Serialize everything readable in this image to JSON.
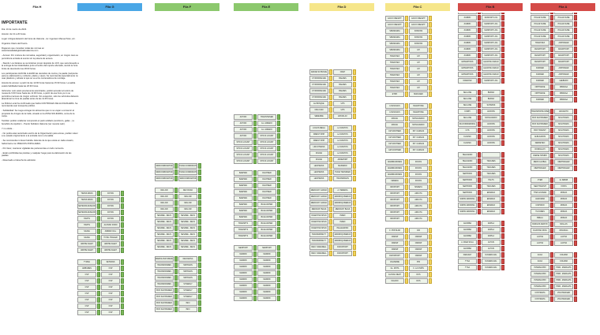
{
  "columns": [
    {
      "label": "Fila H",
      "color": "#ffffff",
      "text_color": "#222222"
    },
    {
      "label": "Fila G",
      "color": "#4aa7e6",
      "text_color": "#222222"
    },
    {
      "label": "Fila F",
      "color": "#8cc86d",
      "text_color": "#222222"
    },
    {
      "label": "Fila E",
      "color": "#8cc86d",
      "text_color": "#222222"
    },
    {
      "label": "Fila D",
      "color": "#f6e68a",
      "text_color": "#222222"
    },
    {
      "label": "Fila C",
      "color": "#f6e68a",
      "text_color": "#222222"
    },
    {
      "label": "Fila B",
      "color": "#d44b48",
      "text_color": "#222222"
    },
    {
      "label": "Fila A",
      "color": "#d44b48",
      "text_color": "#222222"
    }
  ],
  "notes": {
    "title": "IMPORTANTE",
    "paragraphs": [
      "Día: 10 de marzo de 2023.",
      "Horario: de 13 a 20 horas.",
      "Lugar: Antigua Estación del Grao de Valencia - Av. Ingeniero Manuel Soto, s/n.",
      "Organiza: Diario del Puerto.",
      "Rogamos que consulten todas las normas en www.fiestadelalogisticadevalencia.com",
      "- Acceso: Por motivos de normativa, seguridad y organización, en ningún caso se permitirá la entrada al evento sin la pulsera de acceso.",
      "- Stands: Los titulares se suministran previo depósito de 10 €, que será devuelto a la entrega de las titularidades junto al recibo del importe abonado, siendo la hora límite de devolución las 18:00 horas.",
      "Los participantes HAN DE LLEVAR las utensilios de cocina y la paella (recipiente para su elaboración) y cubierto, platos y vasos. Se recomienda especialmente no usar plásticos y alinear el qué se va a los contenedores de reciclaje.",
      "Horario de acceso: a partir de las 12:00 horas hasta las 15:30 horas. La salida estará habilitada hasta las 20:30 horas.",
      "Vehículos: solo están previamente autorizados, podrán acceder al recinto de mesas de 9:30 horas hasta las 11:30 horas, a partir de esa hora ya no se permitirá el acceso de ningún vehículo. Sin excepción, solo los vehículos deberán abandonar la zona de paellas antes de las 11:45 horas.",
      "La Policía Local ha confirmado que habrá CONTROLES DE ALCOHOLEMIA. Se recomienda usar transporte público.",
      "- Solidaridad: Se ruega entregar los alimentos que no se vayan a consumir al propósito de Amigos de la Calle, situado en la ZONA SOLIDARIA, cerca de la carpa.",
      "También podrán colaborar comprando el pack solidario (sombrero, gafas...) a beneficio de Apsiform - Puerto Solidario Valencia (ver nuestra web).",
      "Y no olvide...",
      "- No podrá estar autorizado escrito de la Organización para armas, podrán volver a su estado original tanto a la entrada como a la salida.",
      "- Se recomienda no llevar bebida. Además de la que exista en cada ocasión, habrá barra con PRECIOS POPULARES.",
      "- Por favor, mantener vigiladas las pertenencias en todo momento.",
      "- Están prohibidas las pistolas y cualquier fuego para la elaboración de las paellas.",
      "- Reservado el derecho de admisión."
    ]
  },
  "blocks": [
    {
      "col": 1,
      "rows": [
        [
          "TRANS MANS",
          "DOYPA"
        ],
        [
          "TRANS MANS",
          "DOYPA"
        ],
        [
          "SETRANS ESSILOR",
          "DOYPA"
        ],
        [
          "SETRANS ESSILOR",
          "DOYPA"
        ],
        [
          "HAVHS",
          "DOYPA"
        ],
        [
          "HAVHS",
          "ALONSO FORN"
        ],
        [
          "SAAVE",
          "AMBAR FULL"
        ],
        [
          "SAAVE",
          "TOTAL TRAILER"
        ],
        [
          "ARDHE FLEET",
          "ARDHE FLEET"
        ],
        [
          "ARDHE FLEET",
          "ARDHE FLEET"
        ],
        [],
        [
          "TYMSA",
          "SETRANS"
        ],
        [
          "AMBUMEN",
          "CSP"
        ],
        [
          "CSP",
          "CSP"
        ],
        [
          "CSP",
          "CSP"
        ],
        [
          "CSP",
          "CSP"
        ],
        [
          "CSP",
          "CSP"
        ],
        [
          "CSP",
          "CSP"
        ],
        [
          "CSP",
          "CSP"
        ],
        [
          "CSP",
          "CSP"
        ]
      ],
      "start": 242
    },
    {
      "col": 2,
      "rows": [
        [
          "SIMCOORDINATOR",
          "TURIA COORDINATOR"
        ],
        [
          "SIMCOORDINATOR",
          "TURIA COORDINATOR"
        ],
        [
          "SIMCOORDINATOR",
          "SIMCOORDINATOR"
        ],
        [],
        [
          "DEV AIR",
          "DEV ROAD"
        ],
        [
          "DEV AIR",
          "DEV AIR"
        ],
        [
          "DEV AIR",
          "DEV AIR"
        ],
        [
          "DEV AIR",
          "DEV AIR"
        ],
        [
          "SESAME - ZEUS",
          "SESAME - ZEUS"
        ],
        [
          "SESAME - ZEUS",
          "SESAME - ZEUS"
        ],
        [
          "SESAME - ZEUS",
          "SESAME - ZEUS"
        ],
        [
          "SESAME - ZEUS",
          "SESAME - ZEUS"
        ],
        [
          "SESAME - ZEUS",
          "SESAME - ZEUS"
        ],
        [
          "SESAME - ZEUS",
          "SESAME - ZEUS"
        ],
        [],
        [
          "MARKS AND SPENCER",
          "DECOEXSA"
        ],
        [
          "TRANSFORMES",
          "SINTRANS"
        ],
        [
          "TRANSFORMES",
          "SINTRANS"
        ],
        [
          "TRANSFORMES",
          "SINTRANS"
        ],
        [
          "TRANSFORMES",
          "SYNERGY"
        ],
        [
          "BOX SANTANDER",
          "SYNERGY"
        ],
        [
          "BOX SANTANDER",
          "SYNERGY"
        ],
        [
          "BOX SANTANDER",
          "IMCI"
        ],
        [
          "BOX SANTANDER",
          "IMCI"
        ]
      ],
      "start": 207
    },
    {
      "col": 3,
      "rows": [
        [
          "AKTION",
          "TRANSTAINER"
        ],
        [
          "AKTION",
          "GL. ANDEKO"
        ],
        [
          "AKTION",
          "GL. ANDEKO"
        ],
        [
          "AKTION",
          "STOCK LOGIST"
        ],
        [
          "STOCK LOGIST",
          "STOCK LOGIST"
        ],
        [
          "STOCK LOGIST",
          "STOCK LOGIST"
        ],
        [
          "STOCK LOGIST",
          "STOCK LOGIST"
        ],
        [
          "STOCK LOGIST",
          "STOCK LOGIST"
        ],
        [],
        [
          "BAEHIES",
          "DACHSER"
        ],
        [
          "BAEHIES",
          "DACHSER"
        ],
        [
          "BAEHIES",
          "DACHSER"
        ],
        [
          "BAEHIES",
          "DACHSER"
        ],
        [
          "BAEHIES",
          "DACHSER"
        ],
        [
          "BAEHIES",
          "BLUE WATER"
        ],
        [
          "BAEHIES",
          "BLUE WATER"
        ],
        [
          "BAEHIES",
          "BLUE WATER"
        ],
        [
          "TRANSPTS",
          "BLUE WATER"
        ],
        [
          "TRANSPTS",
          "BLUE WATER"
        ],
        [
          "TRANSPTS",
          "BLUE WATER"
        ],
        [],
        [
          "NEWPORT",
          "NEWPORT"
        ],
        [
          "MADRID",
          "MADRID"
        ],
        [
          "MADRID",
          "MADRID"
        ],
        [
          "MADRID",
          "MADRID"
        ],
        [
          "MADRID",
          "MADRID"
        ],
        [
          "MADRID",
          "MADRID"
        ],
        [
          "MADRID",
          "MADRID"
        ],
        [
          "MADRID",
          "MADRID"
        ],
        [
          "MADRID",
          "MADRID"
        ]
      ],
      "start": 145
    },
    {
      "col": 4,
      "rows": [
        [
          "RADAR SCHUNCE",
          "ONET"
        ],
        [
          "CH RODRIGUES",
          "BALMES"
        ],
        [
          "CH RODRIGUES",
          "BALMES"
        ],
        [
          "CH RODRIGUES",
          "BALMES"
        ],
        [
          "CH RODRIGUES",
          "BALMES"
        ],
        [
          "EL BOSQUE",
          "UPS"
        ],
        [
          "CMA CGM",
          "UPS"
        ],
        [
          "SEMENDE",
          "ESTAFLAX"
        ],
        [],
        [
          "LOGOS MEGA",
          "LA FIANTOS"
        ],
        [
          "WREST SHIP",
          "LA FIANTOS"
        ],
        [
          "WREST SHIP",
          "LA FIANTOS"
        ],
        [
          "LINCOTRANS",
          "LA FIANTOS"
        ],
        [
          "DOANA",
          "LA FIANTOS"
        ],
        [
          "DOANA",
          "AROEPORT"
        ],
        [
          "LEOPRANS",
          "MAPARDO"
        ],
        [
          "LEOPRANS",
          "TURIA TRANSFER"
        ],
        [
          "LEOPRANS",
          "TRANSFRANS"
        ],
        [],
        [
          "MERCURY CARGO",
          "A. HEREDIA"
        ],
        [
          "MERCURY CARGO",
          "MARROQUINERAS"
        ],
        [
          "MERCURY CARGO",
          "MARROQUINERAS"
        ],
        [
          "MERCURY BAGS",
          "MERCURY BAGS"
        ],
        [
          "DIGESTIVA SHAN",
          "INDEX"
        ],
        [
          "DIGESTIVA SHAN",
          "INDEX"
        ],
        [
          "DIGESTIVA SHAN",
          "PELLEGRINO"
        ],
        [
          "TRANSMOBILITY",
          "MARROQUINERAS"
        ],
        [
          "TRANSMOBILITY",
          "MARROQUINERAS"
        ],
        [
          "RECI. NAMADELL",
          "DATAXPORT"
        ],
        [
          "RECI. NAMADELL",
          "DATAXPORT"
        ]
      ],
      "start": 88
    },
    {
      "col": 5,
      "rows": [
        [
          "ECCO FREIGHT",
          "ECCO FREIGHT"
        ],
        [
          "ECCO FREIGHT",
          "ECCO FREIGHT"
        ],
        [
          "SPENNARIA",
          "KOMONS"
        ],
        [
          "SPENNARIA",
          "KOMONS"
        ],
        [
          "SPENNARIA",
          "KOMONS"
        ],
        [
          "SPENNARIA",
          "GH"
        ],
        [
          "TRANSTEX",
          "GH"
        ],
        [
          "TRANSTEX",
          "GH"
        ],
        [
          "TRANSTEX",
          "GH"
        ],
        [
          "TRANSTEX",
          "GH"
        ],
        [
          "TRANSTEX",
          "GH"
        ],
        [
          "TRANSTEX",
          "GH"
        ],
        [
          "ETRO",
          "MANAGED"
        ],
        [],
        [
          "LOGIVAGUS",
          "MILESTONE"
        ],
        [
          "LOGIVAGUS",
          "MILESTONE"
        ],
        [
          "MAKGU",
          "MONCARADO"
        ],
        [
          "MAKGU",
          "MONCARADO"
        ],
        [
          "CM SOCHNER",
          "INT. CARGAS"
        ],
        [
          "CM SOCHNER",
          "INT. CARGAS"
        ],
        [
          "CM SOCHNER",
          "INT. CARGAS"
        ],
        [
          "GM SOCHNER",
          "INT. CARGAS"
        ],
        [],
        [
          "AMARRADORES",
          "DOCKS"
        ],
        [
          "AMARRADORES",
          "DOCKS"
        ],
        [
          "AMARRADORES",
          "DOCKS"
        ],
        [
          "CENEDA",
          "DOCKS"
        ],
        [
          "INFOPORT",
          "SINDETA"
        ],
        [
          "INFOPORT",
          "ARUCTA"
        ],
        [
          "INFOPORT",
          "ARUCTA"
        ],
        [
          "INFOPORT",
          "ARUCTA"
        ],
        [
          "INFOPORT",
          "ARUCTA"
        ],
        [
          "INFOPORT",
          "ARUCTA"
        ],
        [],
        [
          "C. POPULAR",
          "CIR"
        ],
        [
          "CREWP",
          "CREWP"
        ],
        [
          "CREWP",
          "CREWP"
        ],
        [
          "CREWP",
          "CREWP"
        ],
        [
          "DAHINPORT",
          "CREWP"
        ],
        [
          "VALVERDE",
          "IHR"
        ],
        [
          "GL. MOTA",
          "C. LA UNIÓN"
        ],
        [
          "GLOVAL MELTI",
          "DOS"
        ],
        [
          "DALVAN",
          "DOS"
        ]
      ],
      "start": 20
    },
    {
      "col": 6,
      "rows": [
        [
          "ABIDONE NAUGUS",
          "SEA WORLD"
        ],
        [
          "ABIDONE NAUGUS",
          "SEA WORLD"
        ],
        [
          "ZUMMO",
          "RANFORT LOG"
        ],
        [
          "ZUMMO",
          "MANPORT LOG"
        ],
        [
          "ZUMMO",
          "MANPORT LOG"
        ],
        [
          "ZUMMO",
          "MANPORT LOG"
        ],
        [
          "ZUMMO",
          "MANPORT LOG"
        ],
        [
          "ZUMMO",
          "MANPORT LOG"
        ],
        [
          "ZUMMO",
          "MANPORT LOG"
        ],
        [
          "EXPEDITORS",
          "LEVANTE CARGO"
        ],
        [
          "EXPEDITORS",
          "LEVANTE CARGO"
        ],
        [
          "EXPEDITORS",
          "LEVANTE CARGO"
        ],
        [
          "DIAMOND",
          "MANPORT LOG"
        ],
        [],
        [
          "SEA LINE",
          "BILBAO"
        ],
        [
          "SEA LINE",
          "BILBAO"
        ],
        [
          "SEA LINE",
          "SATRANS"
        ],
        [
          "KORPI",
          "ACROSS"
        ],
        [
          "SEA LINE",
          "MONCARADO"
        ],
        [
          "IDA FORWARDING",
          "ACROSS"
        ],
        [
          "GTS",
          "ACROSS"
        ],
        [
          "CLASSIC",
          "ACROSS"
        ],
        [
          "CLASSIC",
          "ACROSS"
        ],
        [],
        [
          "HELLMANN",
          ""
        ],
        [
          "HELLMANN",
          "TRAGNES"
        ],
        [
          "HELLMANN",
          "TRAGNES"
        ],
        [
          "SERTRIOD",
          "TRAGNES"
        ],
        [
          "SERTRIOD",
          "HALTS"
        ],
        [
          "SERTRIOD",
          "TRAGNES"
        ],
        [
          "SERTRIOD",
          "ERIMALD"
        ],
        [
          "SIMON MARKING",
          "ERIMALD"
        ],
        [
          "SIMON MARKING",
          "ERIMALD"
        ],
        [
          "SIMON MARKING",
          "ERIMALD"
        ],
        [],
        [
          "AGOMBA",
          "RAPILA"
        ],
        [
          "AGOMBA",
          "RAPILA"
        ],
        [
          "AGOMBA",
          "RAPILA"
        ],
        [
          "A. FDEZ SOLA",
          "ALTIUS"
        ],
        [
          "AGOMBA",
          "ALTIUS"
        ],
        [
          "FARADAY",
          "NAVIERA DAL"
        ],
        [
          "TYSA",
          "NAVIERA DAL"
        ],
        [
          "TYSA",
          "NAVIERA DAL"
        ]
      ],
      "start": 3
    },
    {
      "col": 7,
      "rows": [
        [
          "POLAR CUBE",
          "POLAR CUBE"
        ],
        [
          "POLAR CUBE",
          "POLAR CUBE"
        ],
        [
          "POLAR CUBE",
          "POLAR CUBE"
        ],
        [
          "POLAR CUBE",
          "POLAR CUBE"
        ],
        [
          "POLAR CUBE",
          "POLAR CUBE"
        ],
        [
          "POLAR CUBE",
          "POLAR CUBE"
        ],
        [
          "TRANSTEX",
          "ASPHAMAR"
        ],
        [
          "FENATPORT",
          "FENATPORT"
        ],
        [
          "FENATPORT",
          "FENATPORT"
        ],
        [
          "FENATPORT",
          "FENATPORT"
        ],
        [
          "RUDDER",
          "ASPHAMAR"
        ],
        [
          "RUDDER",
          "ASPHAMAR"
        ],
        [
          "RUDDER",
          "LEEBURO"
        ],
        [
          "ORTHANDE",
          "DIBADAA"
        ],
        [
          "ORTHANDE",
          "DIBADAA"
        ],
        [
          "RUDDER",
          "DIBADAA"
        ],
        [],
        [
          "TRANSPORTE OPERADOR",
          "ADUANITO"
        ],
        [
          "BOX SANTANDER",
          "MOLITRANS"
        ],
        [
          "BOX SANTANDER",
          "MOLITRANS"
        ],
        [
          "BOX TRANSIT",
          "MOLITRANS"
        ],
        [
          "ALBACAROS",
          "MOLITRANS"
        ],
        [
          "FERRETEO",
          "MOLITRANS"
        ],
        [
          "DORNALATI",
          "MOLITRANS"
        ],
        [
          "AVEINE HANIRO",
          "MOLITRANS"
        ],
        [
          "MEDS GLOBAL",
          "MERTRAILER"
        ],
        [
          "MERTRAILER",
          "MERTRAILER"
        ],
        [],
        [
          "ZYEB",
          "E. ZEBAB"
        ],
        [
          "NEW TRANSIT",
          "VOSTA"
        ],
        [
          "TTES GOVERA",
          "MONZA"
        ],
        [
          "AGROMAR",
          "MONZA"
        ],
        [
          "CORTADO",
          "MONZA"
        ],
        [
          "TUCOMES",
          "MONZA"
        ],
        [
          "BRELA",
          "MONZA"
        ],
        [
          "BURGOS AMISTO",
          "MOLLAS"
        ],
        [
          "DUANTAN ROIG",
          "MOLIMAG"
        ],
        [
          "LANTIA",
          "LANTIA"
        ],
        [
          "LANTIA",
          "LANTIA"
        ],
        [],
        [
          "ZACA",
          "COLMAR"
        ],
        [
          "ZACA",
          "COLMAR"
        ],
        [
          "INTERGLOBO",
          "HMM - MARIGATA"
        ],
        [
          "INTERGLOBO",
          "HMM - MARIGATA"
        ],
        [
          "INTERGLOBO",
          "HMM - MARIGATA"
        ],
        [
          "INTERGLOBO",
          "HMM - MARIGATA"
        ],
        [
          "COSTRAVIA",
          "VOLKSWAGEN"
        ],
        [
          "COSTRAVIA",
          "VOLKSWAGEN"
        ]
      ],
      "start": 3
    }
  ]
}
